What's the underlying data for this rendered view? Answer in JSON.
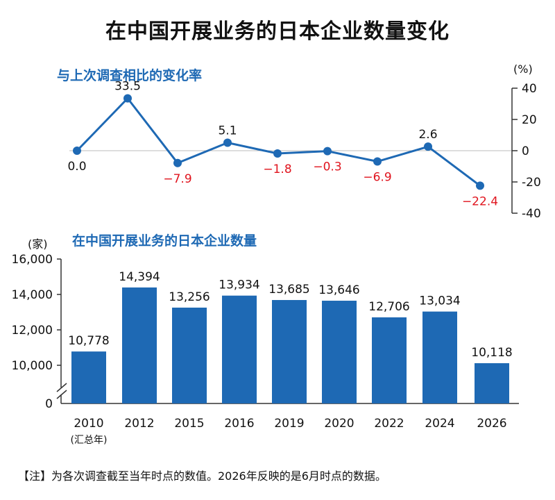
{
  "page": {
    "title": "在中国开展业务的日本企业数量变化",
    "footnote": "【注】为各次调查截至当年时点的数值。2026年反映的是6月时点的数据。"
  },
  "colors": {
    "accent": "#1e69b4",
    "negative": "#e0141e",
    "text": "#111111",
    "axis": "#333333",
    "zero_line": "#bbbbbb"
  },
  "chart_data": [
    {
      "type": "line",
      "title": "与上次调查相比的变化率",
      "ylabel": "(%)",
      "ylim": [
        -40,
        40
      ],
      "yticks": [
        40,
        20,
        0,
        -20,
        -40
      ],
      "y_axis_side": "right",
      "grid": false,
      "zero_line": true,
      "x": [
        "2010",
        "2012",
        "2015",
        "2016",
        "2019",
        "2020",
        "2022",
        "2024",
        "2026"
      ],
      "values": [
        0.0,
        33.5,
        -7.9,
        5.1,
        -1.8,
        -0.3,
        -6.9,
        2.6,
        -22.4
      ],
      "labels": [
        "0.0",
        "33.5",
        "−7.9",
        "5.1",
        "−1.8",
        "−0.3",
        "−6.9",
        "2.6",
        "−22.4"
      ],
      "negative_label_color": "#e0141e"
    },
    {
      "type": "bar",
      "title": "在中国开展业务的日本企业数量",
      "ylabel": "(家)",
      "ylim": [
        0,
        16000
      ],
      "axis_break": true,
      "yticks": [
        "16,000",
        "14,000",
        "12,000",
        "10,000",
        "0"
      ],
      "categories": [
        "2010",
        "2012",
        "2015",
        "2016",
        "2019",
        "2020",
        "2022",
        "2024",
        "2026"
      ],
      "category_notes": [
        "(汇总年)",
        "",
        "",
        "",
        "",
        "",
        "",
        "",
        ""
      ],
      "values": [
        10778,
        14394,
        13256,
        13934,
        13685,
        13646,
        12706,
        13034,
        10118
      ],
      "labels": [
        "10,778",
        "14,394",
        "13,256",
        "13,934",
        "13,685",
        "13,646",
        "12,706",
        "13,034",
        "10,118"
      ],
      "bar_color": "#1e69b4"
    }
  ]
}
